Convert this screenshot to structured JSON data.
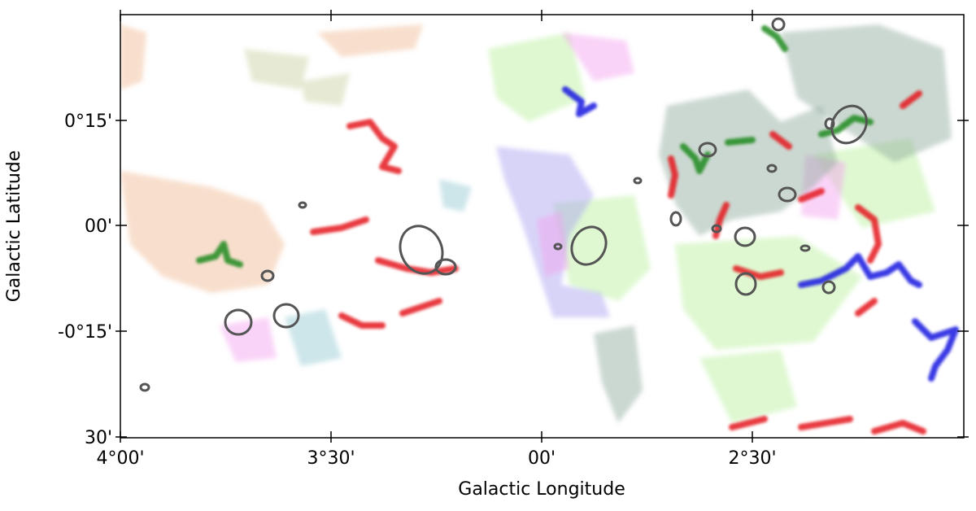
{
  "axes": {
    "x_label": "Galactic Longitude",
    "y_label": "Galactic Latitude",
    "x_ticks": [
      "4°00'",
      "3°30'",
      "00'",
      "2°30'"
    ],
    "y_ticks": [
      "0°15'",
      "00'",
      "-0°15'",
      "30'"
    ]
  }
}
